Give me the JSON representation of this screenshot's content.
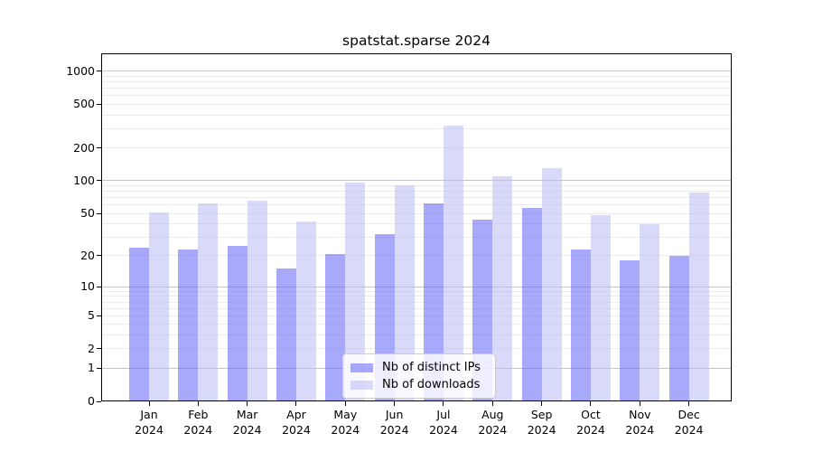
{
  "title": "spatstat.sparse 2024",
  "legend": {
    "items": [
      {
        "label": "Nb of distinct IPs"
      },
      {
        "label": "Nb of downloads"
      }
    ]
  },
  "chart_data": {
    "type": "bar",
    "title": "spatstat.sparse 2024",
    "categories": [
      "Jan",
      "Feb",
      "Mar",
      "Apr",
      "May",
      "Jun",
      "Jul",
      "Aug",
      "Sep",
      "Oct",
      "Nov",
      "Dec"
    ],
    "x_year": "2024",
    "series": [
      {
        "name": "Nb of distinct IPs",
        "color": "#6363f8",
        "alpha": 0.55,
        "values": [
          24,
          23,
          25,
          15,
          21,
          32,
          62,
          44,
          56,
          23,
          18,
          20
        ]
      },
      {
        "name": "Nb of downloads",
        "color": "#babaf6",
        "alpha": 0.55,
        "values": [
          51,
          62,
          66,
          42,
          96,
          90,
          320,
          110,
          131,
          48,
          40,
          78
        ]
      }
    ],
    "y_axis": {
      "scale": "log1p",
      "ticks": [
        0,
        1,
        2,
        5,
        10,
        20,
        50,
        100,
        200,
        500,
        1000
      ],
      "max": 1450
    },
    "grid": true,
    "grid_minor_color": "#ececec",
    "grid_major_color": "#c5c5c5",
    "legend_position": "lower-center"
  }
}
